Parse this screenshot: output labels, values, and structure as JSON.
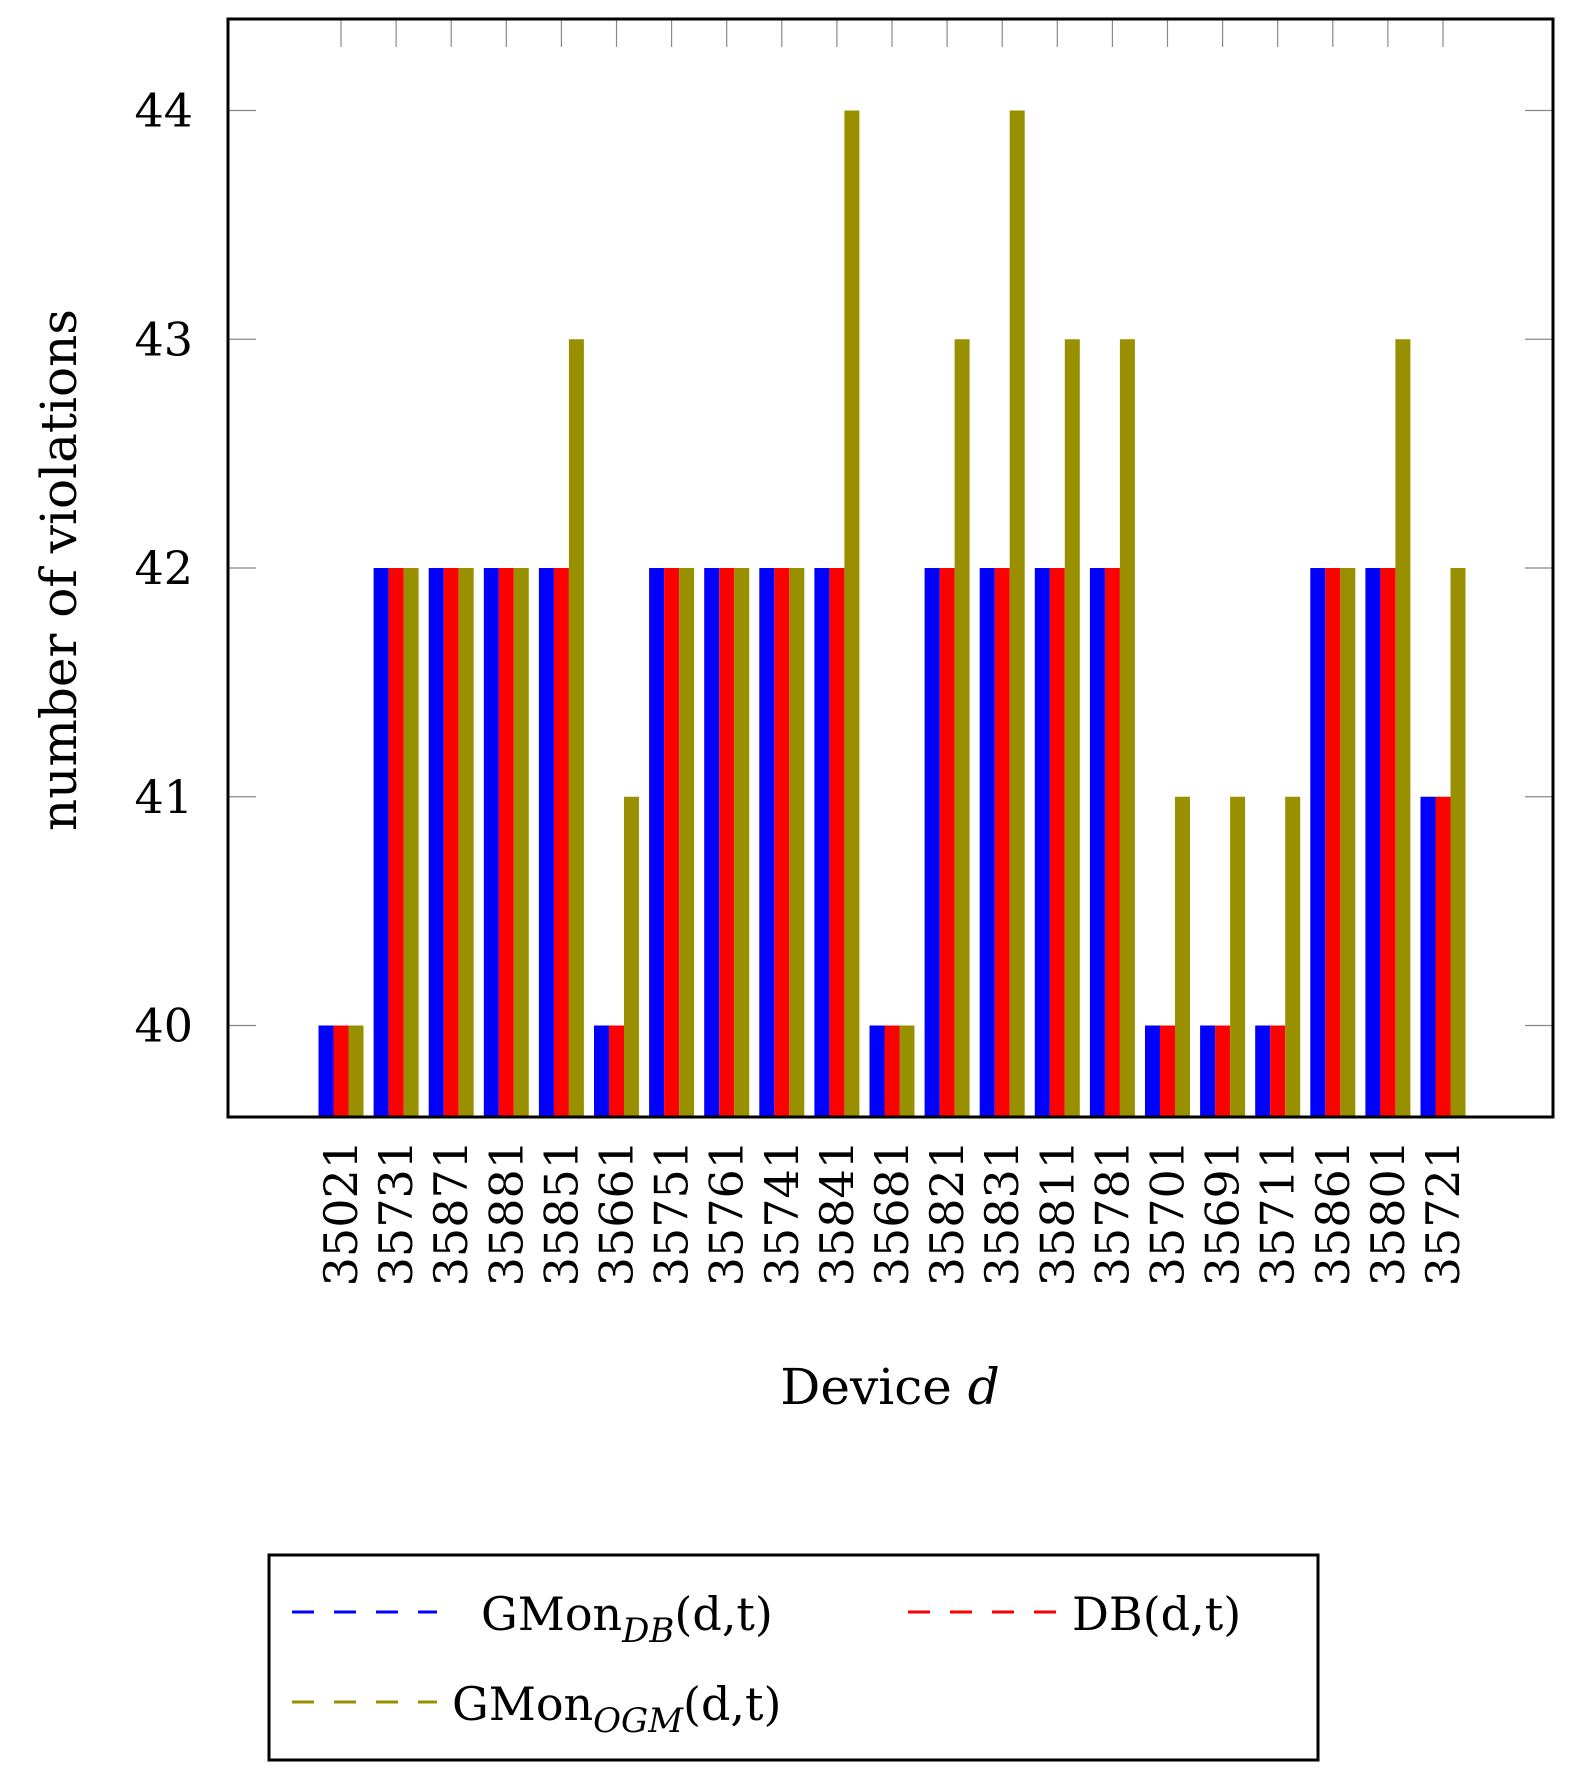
{
  "chart_data": {
    "type": "bar",
    "title": "",
    "xlabel": "Device",
    "xlabel_var": "d",
    "ylabel": "number of violations",
    "ylim": [
      39.6,
      44.4
    ],
    "yticks": [
      40,
      41,
      42,
      43,
      44
    ],
    "grid": false,
    "legend_position": "bottom",
    "categories": [
      "35021",
      "35731",
      "35871",
      "35881",
      "35851",
      "35661",
      "35751",
      "35761",
      "35741",
      "35841",
      "35681",
      "35821",
      "35831",
      "35811",
      "35781",
      "35701",
      "35691",
      "35711",
      "35861",
      "35801",
      "35721"
    ],
    "series": [
      {
        "name": "GMon",
        "subscript": "DB",
        "suffix": "(d,t)",
        "color": "#0000ff",
        "values": [
          40,
          42,
          42,
          42,
          42,
          40,
          42,
          42,
          42,
          42,
          40,
          42,
          42,
          42,
          42,
          40,
          40,
          40,
          42,
          42,
          41
        ]
      },
      {
        "name": "DB",
        "subscript": "",
        "suffix": "(d,t)",
        "color": "#ff0000",
        "values": [
          40,
          42,
          42,
          42,
          42,
          40,
          42,
          42,
          42,
          42,
          40,
          42,
          42,
          42,
          42,
          40,
          40,
          40,
          42,
          42,
          41
        ]
      },
      {
        "name": "GMon",
        "subscript": "OGM",
        "suffix": "(d,t)",
        "color": "#999000",
        "values": [
          40,
          42,
          42,
          42,
          43,
          41,
          42,
          42,
          42,
          44,
          40,
          43,
          44,
          43,
          43,
          41,
          41,
          41,
          42,
          43,
          42
        ]
      }
    ]
  }
}
